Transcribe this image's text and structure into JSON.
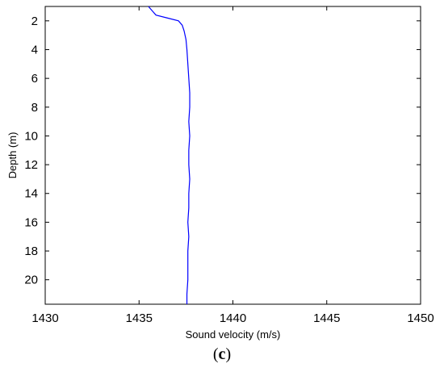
{
  "chart_data": {
    "type": "line",
    "xlabel": "Sound velocity (m/s)",
    "ylabel": "Depth (m)",
    "xlim": [
      1430,
      1450
    ],
    "ylim": [
      1,
      21.7
    ],
    "y_inverted": true,
    "x_ticks": [
      "1430",
      "1435",
      "1440",
      "1445",
      "1450"
    ],
    "y_ticks": [
      "2",
      "4",
      "6",
      "8",
      "10",
      "12",
      "14",
      "16",
      "18",
      "20"
    ],
    "grid": false,
    "line_color": "#0000ff",
    "series": [
      {
        "points": [
          {
            "x": 1435.5,
            "y": 1.0
          },
          {
            "x": 1435.7,
            "y": 1.3
          },
          {
            "x": 1435.9,
            "y": 1.6
          },
          {
            "x": 1436.5,
            "y": 1.8
          },
          {
            "x": 1437.1,
            "y": 2.0
          },
          {
            "x": 1437.3,
            "y": 2.3
          },
          {
            "x": 1437.4,
            "y": 2.7
          },
          {
            "x": 1437.5,
            "y": 3.3
          },
          {
            "x": 1437.55,
            "y": 4.0
          },
          {
            "x": 1437.6,
            "y": 5.0
          },
          {
            "x": 1437.65,
            "y": 6.0
          },
          {
            "x": 1437.7,
            "y": 7.0
          },
          {
            "x": 1437.7,
            "y": 8.0
          },
          {
            "x": 1437.65,
            "y": 9.0
          },
          {
            "x": 1437.7,
            "y": 10.0
          },
          {
            "x": 1437.65,
            "y": 11.0
          },
          {
            "x": 1437.65,
            "y": 12.0
          },
          {
            "x": 1437.7,
            "y": 13.0
          },
          {
            "x": 1437.65,
            "y": 14.0
          },
          {
            "x": 1437.65,
            "y": 15.0
          },
          {
            "x": 1437.6,
            "y": 16.0
          },
          {
            "x": 1437.65,
            "y": 17.0
          },
          {
            "x": 1437.6,
            "y": 18.0
          },
          {
            "x": 1437.6,
            "y": 19.0
          },
          {
            "x": 1437.6,
            "y": 20.0
          },
          {
            "x": 1437.55,
            "y": 21.0
          },
          {
            "x": 1437.55,
            "y": 21.7
          }
        ]
      }
    ]
  },
  "caption": {
    "open": "(",
    "letter": "c",
    "close": ")"
  }
}
